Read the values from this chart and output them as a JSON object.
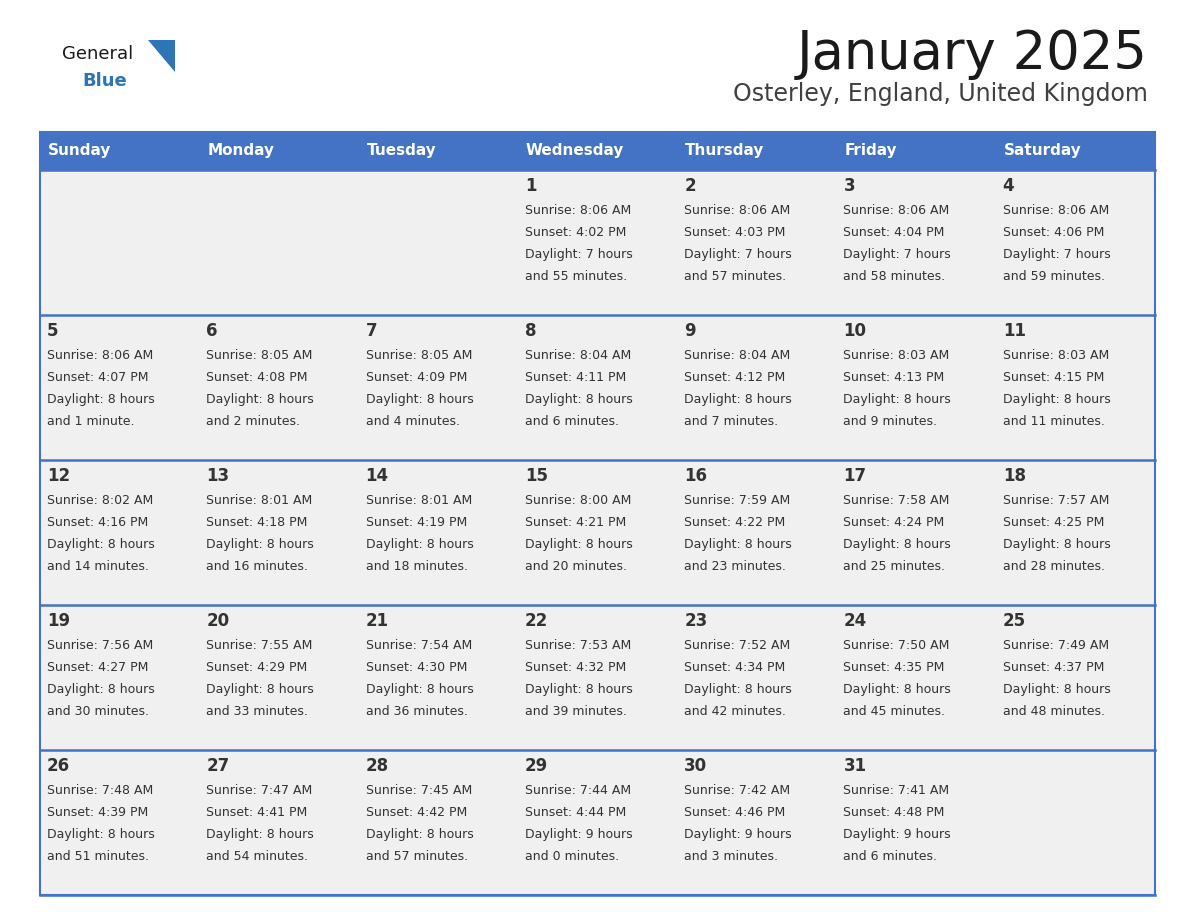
{
  "title": "January 2025",
  "subtitle": "Osterley, England, United Kingdom",
  "header_color": "#4472C4",
  "header_text_color": "#FFFFFF",
  "days_of_week": [
    "Sunday",
    "Monday",
    "Tuesday",
    "Wednesday",
    "Thursday",
    "Friday",
    "Saturday"
  ],
  "background_color": "#FFFFFF",
  "cell_bg_color": "#F0F0F0",
  "cell_border_color": "#4472C4",
  "text_color": "#333333",
  "weeks": [
    [
      {
        "day": "",
        "sunrise": "",
        "sunset": "",
        "daylight_line1": "",
        "daylight_line2": ""
      },
      {
        "day": "",
        "sunrise": "",
        "sunset": "",
        "daylight_line1": "",
        "daylight_line2": ""
      },
      {
        "day": "",
        "sunrise": "",
        "sunset": "",
        "daylight_line1": "",
        "daylight_line2": ""
      },
      {
        "day": "1",
        "sunrise": "8:06 AM",
        "sunset": "4:02 PM",
        "daylight_line1": "Daylight: 7 hours",
        "daylight_line2": "and 55 minutes."
      },
      {
        "day": "2",
        "sunrise": "8:06 AM",
        "sunset": "4:03 PM",
        "daylight_line1": "Daylight: 7 hours",
        "daylight_line2": "and 57 minutes."
      },
      {
        "day": "3",
        "sunrise": "8:06 AM",
        "sunset": "4:04 PM",
        "daylight_line1": "Daylight: 7 hours",
        "daylight_line2": "and 58 minutes."
      },
      {
        "day": "4",
        "sunrise": "8:06 AM",
        "sunset": "4:06 PM",
        "daylight_line1": "Daylight: 7 hours",
        "daylight_line2": "and 59 minutes."
      }
    ],
    [
      {
        "day": "5",
        "sunrise": "8:06 AM",
        "sunset": "4:07 PM",
        "daylight_line1": "Daylight: 8 hours",
        "daylight_line2": "and 1 minute."
      },
      {
        "day": "6",
        "sunrise": "8:05 AM",
        "sunset": "4:08 PM",
        "daylight_line1": "Daylight: 8 hours",
        "daylight_line2": "and 2 minutes."
      },
      {
        "day": "7",
        "sunrise": "8:05 AM",
        "sunset": "4:09 PM",
        "daylight_line1": "Daylight: 8 hours",
        "daylight_line2": "and 4 minutes."
      },
      {
        "day": "8",
        "sunrise": "8:04 AM",
        "sunset": "4:11 PM",
        "daylight_line1": "Daylight: 8 hours",
        "daylight_line2": "and 6 minutes."
      },
      {
        "day": "9",
        "sunrise": "8:04 AM",
        "sunset": "4:12 PM",
        "daylight_line1": "Daylight: 8 hours",
        "daylight_line2": "and 7 minutes."
      },
      {
        "day": "10",
        "sunrise": "8:03 AM",
        "sunset": "4:13 PM",
        "daylight_line1": "Daylight: 8 hours",
        "daylight_line2": "and 9 minutes."
      },
      {
        "day": "11",
        "sunrise": "8:03 AM",
        "sunset": "4:15 PM",
        "daylight_line1": "Daylight: 8 hours",
        "daylight_line2": "and 11 minutes."
      }
    ],
    [
      {
        "day": "12",
        "sunrise": "8:02 AM",
        "sunset": "4:16 PM",
        "daylight_line1": "Daylight: 8 hours",
        "daylight_line2": "and 14 minutes."
      },
      {
        "day": "13",
        "sunrise": "8:01 AM",
        "sunset": "4:18 PM",
        "daylight_line1": "Daylight: 8 hours",
        "daylight_line2": "and 16 minutes."
      },
      {
        "day": "14",
        "sunrise": "8:01 AM",
        "sunset": "4:19 PM",
        "daylight_line1": "Daylight: 8 hours",
        "daylight_line2": "and 18 minutes."
      },
      {
        "day": "15",
        "sunrise": "8:00 AM",
        "sunset": "4:21 PM",
        "daylight_line1": "Daylight: 8 hours",
        "daylight_line2": "and 20 minutes."
      },
      {
        "day": "16",
        "sunrise": "7:59 AM",
        "sunset": "4:22 PM",
        "daylight_line1": "Daylight: 8 hours",
        "daylight_line2": "and 23 minutes."
      },
      {
        "day": "17",
        "sunrise": "7:58 AM",
        "sunset": "4:24 PM",
        "daylight_line1": "Daylight: 8 hours",
        "daylight_line2": "and 25 minutes."
      },
      {
        "day": "18",
        "sunrise": "7:57 AM",
        "sunset": "4:25 PM",
        "daylight_line1": "Daylight: 8 hours",
        "daylight_line2": "and 28 minutes."
      }
    ],
    [
      {
        "day": "19",
        "sunrise": "7:56 AM",
        "sunset": "4:27 PM",
        "daylight_line1": "Daylight: 8 hours",
        "daylight_line2": "and 30 minutes."
      },
      {
        "day": "20",
        "sunrise": "7:55 AM",
        "sunset": "4:29 PM",
        "daylight_line1": "Daylight: 8 hours",
        "daylight_line2": "and 33 minutes."
      },
      {
        "day": "21",
        "sunrise": "7:54 AM",
        "sunset": "4:30 PM",
        "daylight_line1": "Daylight: 8 hours",
        "daylight_line2": "and 36 minutes."
      },
      {
        "day": "22",
        "sunrise": "7:53 AM",
        "sunset": "4:32 PM",
        "daylight_line1": "Daylight: 8 hours",
        "daylight_line2": "and 39 minutes."
      },
      {
        "day": "23",
        "sunrise": "7:52 AM",
        "sunset": "4:34 PM",
        "daylight_line1": "Daylight: 8 hours",
        "daylight_line2": "and 42 minutes."
      },
      {
        "day": "24",
        "sunrise": "7:50 AM",
        "sunset": "4:35 PM",
        "daylight_line1": "Daylight: 8 hours",
        "daylight_line2": "and 45 minutes."
      },
      {
        "day": "25",
        "sunrise": "7:49 AM",
        "sunset": "4:37 PM",
        "daylight_line1": "Daylight: 8 hours",
        "daylight_line2": "and 48 minutes."
      }
    ],
    [
      {
        "day": "26",
        "sunrise": "7:48 AM",
        "sunset": "4:39 PM",
        "daylight_line1": "Daylight: 8 hours",
        "daylight_line2": "and 51 minutes."
      },
      {
        "day": "27",
        "sunrise": "7:47 AM",
        "sunset": "4:41 PM",
        "daylight_line1": "Daylight: 8 hours",
        "daylight_line2": "and 54 minutes."
      },
      {
        "day": "28",
        "sunrise": "7:45 AM",
        "sunset": "4:42 PM",
        "daylight_line1": "Daylight: 8 hours",
        "daylight_line2": "and 57 minutes."
      },
      {
        "day": "29",
        "sunrise": "7:44 AM",
        "sunset": "4:44 PM",
        "daylight_line1": "Daylight: 9 hours",
        "daylight_line2": "and 0 minutes."
      },
      {
        "day": "30",
        "sunrise": "7:42 AM",
        "sunset": "4:46 PM",
        "daylight_line1": "Daylight: 9 hours",
        "daylight_line2": "and 3 minutes."
      },
      {
        "day": "31",
        "sunrise": "7:41 AM",
        "sunset": "4:48 PM",
        "daylight_line1": "Daylight: 9 hours",
        "daylight_line2": "and 6 minutes."
      },
      {
        "day": "",
        "sunrise": "",
        "sunset": "",
        "daylight_line1": "",
        "daylight_line2": ""
      }
    ]
  ]
}
